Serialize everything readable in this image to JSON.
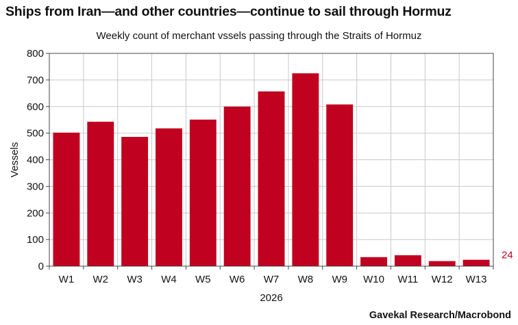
{
  "header": {
    "title": "Ships from Iran—and other countries—continue to sail through Hormuz",
    "subtitle": "Weekly count of merchant vssels passing through the Straits of Hormuz"
  },
  "footer": {
    "source": "Gavekal Research/Macrobond"
  },
  "colors": {
    "bar": "#c0011f",
    "grid": "#c8c8c8",
    "axis": "#444444"
  },
  "chart_data": {
    "type": "bar",
    "title": "Ships from Iran—and other countries—continue to sail through Hormuz",
    "subtitle": "Weekly count of merchant vssels passing through the Straits of Hormuz",
    "xlabel": "2026",
    "ylabel": "Vessels",
    "categories": [
      "W1",
      "W2",
      "W3",
      "W4",
      "W5",
      "W6",
      "W7",
      "W8",
      "W9",
      "W10",
      "W11",
      "W12",
      "W13"
    ],
    "values": [
      502,
      543,
      486,
      518,
      551,
      600,
      657,
      725,
      608,
      34,
      41,
      19,
      24
    ],
    "ylim": [
      0,
      800
    ],
    "yticks": [
      0,
      100,
      200,
      300,
      400,
      500,
      600,
      700,
      800
    ],
    "grid": true,
    "end_label": "24"
  }
}
